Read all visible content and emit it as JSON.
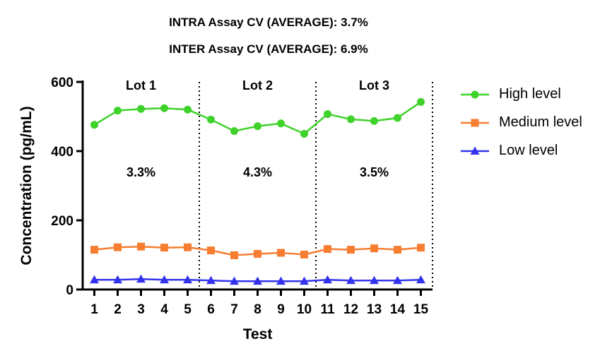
{
  "header": {
    "line1": "INTRA Assay CV (AVERAGE): 3.7%",
    "line2": "INTER Assay CV (AVERAGE): 6.9%"
  },
  "chart_data": {
    "type": "line",
    "xlabel": "Test",
    "ylabel": "Concentration (pg/mL)",
    "x": [
      1,
      2,
      3,
      4,
      5,
      6,
      7,
      8,
      9,
      10,
      11,
      12,
      13,
      14,
      15
    ],
    "xlim": [
      0.5,
      15.5
    ],
    "ylim": [
      0,
      600
    ],
    "yticks": [
      0,
      200,
      400,
      600
    ],
    "grid": false,
    "legend_position": "right",
    "series": [
      {
        "name": "High level",
        "marker": "circle",
        "color": "#3fd22b",
        "values": [
          476,
          517,
          522,
          524,
          520,
          491,
          458,
          472,
          480,
          450,
          507,
          492,
          487,
          496,
          542
        ]
      },
      {
        "name": "Medium level",
        "marker": "square",
        "color": "#f77d31",
        "values": [
          115,
          122,
          124,
          121,
          122,
          113,
          99,
          103,
          106,
          101,
          117,
          115,
          119,
          115,
          121
        ]
      },
      {
        "name": "Low level",
        "marker": "triangle",
        "color": "#3333ee",
        "values": [
          28,
          28,
          30,
          28,
          28,
          26,
          24,
          24,
          24,
          24,
          28,
          26,
          26,
          26,
          28
        ]
      }
    ],
    "lots": [
      {
        "label": "Lot 1",
        "cv": "3.3%"
      },
      {
        "label": "Lot 2",
        "cv": "4.3%"
      },
      {
        "label": "Lot 3",
        "cv": "3.5%"
      }
    ],
    "lot_boundaries": [
      5.5,
      10.5,
      15.5
    ]
  }
}
